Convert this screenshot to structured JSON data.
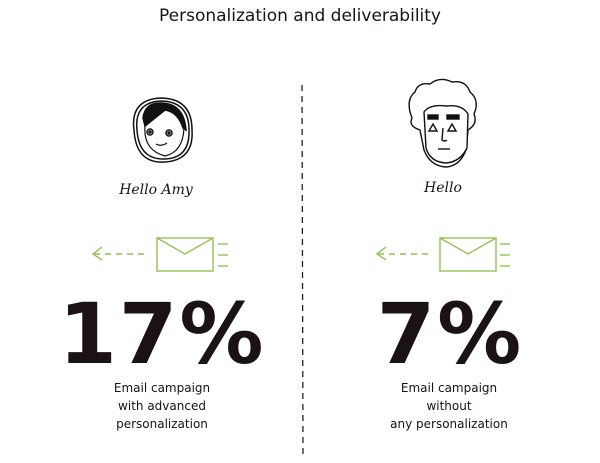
{
  "title": "Personalization and deliverability",
  "accent_color": "#93c152",
  "left": {
    "greeting": "Hello Amy",
    "percent": "17%",
    "description": [
      "Email campaign",
      "with advanced",
      "personalization"
    ],
    "icon": "woman-face-icon"
  },
  "right": {
    "greeting": "Hello",
    "percent": "7%",
    "description": [
      "Email campaign",
      "without",
      "any personalization"
    ],
    "icon": "man-face-icon"
  }
}
